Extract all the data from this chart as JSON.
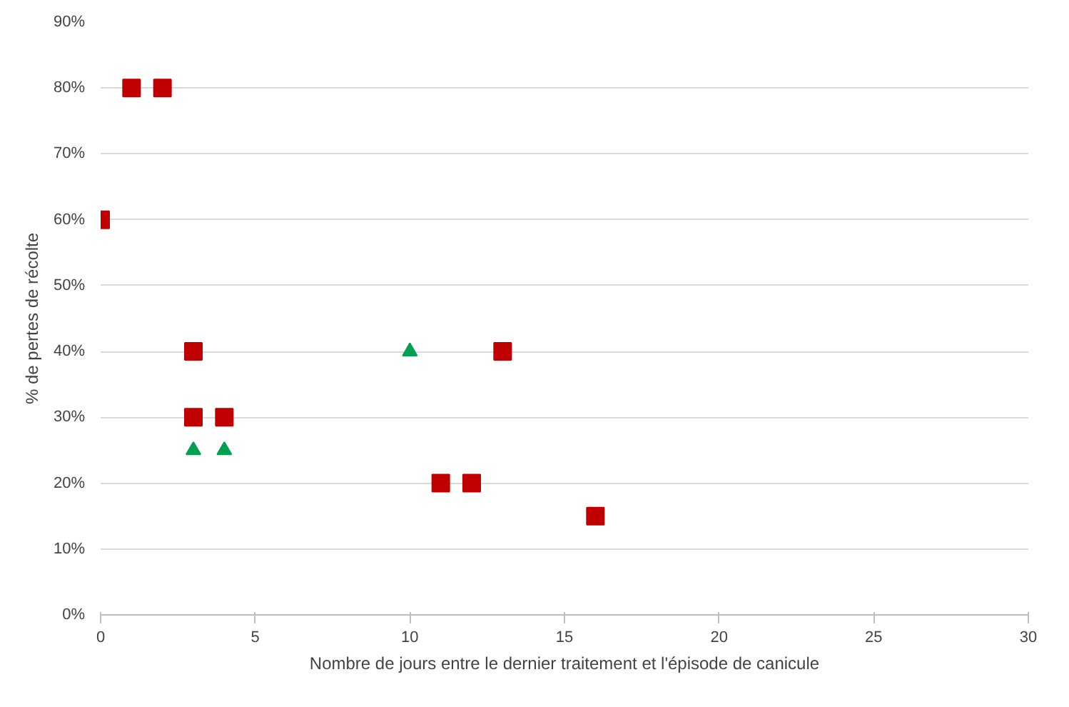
{
  "chart_data": {
    "type": "scatter",
    "xlabel": "Nombre de jours entre le dernier traitement et l'épisode de canicule",
    "ylabel": "% de pertes de récolte",
    "xlim": [
      0,
      30
    ],
    "xticks": [
      0,
      5,
      10,
      15,
      20,
      25,
      30
    ],
    "ylim": [
      0,
      90
    ],
    "yticks": [
      {
        "value": 0,
        "label": "0%"
      },
      {
        "value": 10,
        "label": "10%"
      },
      {
        "value": 20,
        "label": "20%"
      },
      {
        "value": 30,
        "label": "30%"
      },
      {
        "value": 40,
        "label": "40%"
      },
      {
        "value": 50,
        "label": "50%"
      },
      {
        "value": 60,
        "label": "60%"
      },
      {
        "value": 70,
        "label": "70%"
      },
      {
        "value": 80,
        "label": "80%"
      },
      {
        "value": 90,
        "label": "90%"
      }
    ],
    "grid": "y",
    "series": [
      {
        "color": "#c00000",
        "marker": "square",
        "x": [
          0,
          1,
          2,
          3,
          3,
          4,
          11,
          12,
          13,
          16
        ],
        "values": [
          60,
          80,
          80,
          40,
          30,
          30,
          20,
          20,
          40,
          15
        ]
      },
      {
        "color": "#00a050",
        "marker": "triangle",
        "x": [
          3,
          4,
          10
        ],
        "values": [
          25,
          25,
          40
        ]
      }
    ]
  }
}
